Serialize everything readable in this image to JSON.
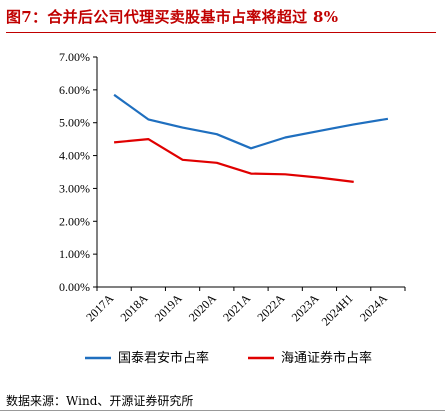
{
  "page": {
    "title": "图7：合并后公司代理买卖股基市占率将超过 8%",
    "source": "数据来源：Wind、开源证券研究所"
  },
  "colors": {
    "title": "#c00000",
    "series_1": "#1f6fbf",
    "series_2": "#e00000"
  },
  "chart_data": {
    "type": "line",
    "categories": [
      "2017A",
      "2018A",
      "2019A",
      "2020A",
      "2021A",
      "2022A",
      "2023A",
      "2024H1",
      "2024A"
    ],
    "y_tick_labels": [
      "0.00%",
      "1.00%",
      "2.00%",
      "3.00%",
      "4.00%",
      "5.00%",
      "6.00%",
      "7.00%"
    ],
    "ylim": [
      0,
      7
    ],
    "grid": false,
    "legend_position": "bottom",
    "series": [
      {
        "name": "国泰君安市占率",
        "color": "#1f6fbf",
        "values": [
          5.85,
          5.1,
          4.85,
          4.65,
          4.22,
          4.55,
          4.75,
          4.95,
          5.12
        ]
      },
      {
        "name": "海通证券市占率",
        "color": "#e00000",
        "values": [
          4.4,
          4.5,
          3.87,
          3.78,
          3.45,
          3.43,
          3.33,
          3.2,
          null
        ]
      }
    ]
  }
}
